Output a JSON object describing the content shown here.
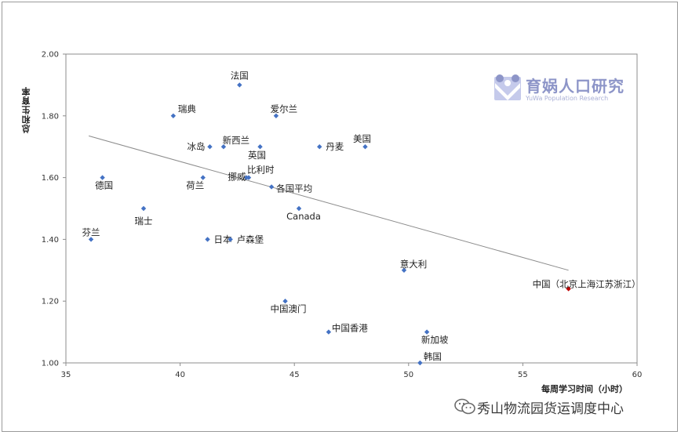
{
  "chart_data": {
    "type": "scatter",
    "title": "",
    "xlabel": "每周学习时间（小时）",
    "ylabel": "总和生育率",
    "xlim": [
      35,
      60
    ],
    "ylim": [
      1.0,
      2.0
    ],
    "xticks": [
      "35",
      "40",
      "45",
      "50",
      "55",
      "60"
    ],
    "yticks": [
      "1.00",
      "1.20",
      "1.40",
      "1.60",
      "1.80",
      "2.00"
    ],
    "grid": false,
    "points": [
      {
        "label": "法国",
        "x": 42.6,
        "y": 1.9
      },
      {
        "label": "瑞典",
        "x": 39.7,
        "y": 1.8
      },
      {
        "label": "爱尔兰",
        "x": 44.2,
        "y": 1.8
      },
      {
        "label": "冰岛",
        "x": 41.3,
        "y": 1.7
      },
      {
        "label": "新西兰",
        "x": 41.9,
        "y": 1.7
      },
      {
        "label": "英国",
        "x": 43.5,
        "y": 1.7
      },
      {
        "label": "丹麦",
        "x": 46.1,
        "y": 1.7
      },
      {
        "label": "美国",
        "x": 48.1,
        "y": 1.7
      },
      {
        "label": "德国",
        "x": 36.6,
        "y": 1.6
      },
      {
        "label": "荷兰",
        "x": 41.0,
        "y": 1.6
      },
      {
        "label": "挪威",
        "x": 42.9,
        "y": 1.6
      },
      {
        "label": "比利时",
        "x": 43.0,
        "y": 1.6
      },
      {
        "label": "各国平均",
        "x": 44.0,
        "y": 1.57
      },
      {
        "label": "瑞士",
        "x": 38.4,
        "y": 1.5
      },
      {
        "label": "Canada",
        "x": 45.2,
        "y": 1.5
      },
      {
        "label": "芬兰",
        "x": 36.1,
        "y": 1.4
      },
      {
        "label": "日本",
        "x": 41.2,
        "y": 1.4
      },
      {
        "label": "卢森堡",
        "x": 42.2,
        "y": 1.4
      },
      {
        "label": "意大利",
        "x": 49.8,
        "y": 1.3
      },
      {
        "label": "中国（北京上海江苏浙江）",
        "x": 57.0,
        "y": 1.24,
        "highlight": true
      },
      {
        "label": "中国澳门",
        "x": 44.6,
        "y": 1.2
      },
      {
        "label": "中国香港",
        "x": 46.5,
        "y": 1.1
      },
      {
        "label": "新加坡",
        "x": 50.8,
        "y": 1.1
      },
      {
        "label": "韩国",
        "x": 50.5,
        "y": 1.0
      }
    ],
    "trendline": {
      "x": [
        36.0,
        57.0
      ],
      "y": [
        1.735,
        1.3
      ]
    },
    "colors": {
      "point": "#4472c4",
      "highlight": "#c00000",
      "trend": "#8c8c8c"
    }
  },
  "logo": {
    "title": "育娲人口研究",
    "subtitle": "YuWa Population Research"
  },
  "watermark": {
    "text": "秀山物流园货运调度中心"
  }
}
